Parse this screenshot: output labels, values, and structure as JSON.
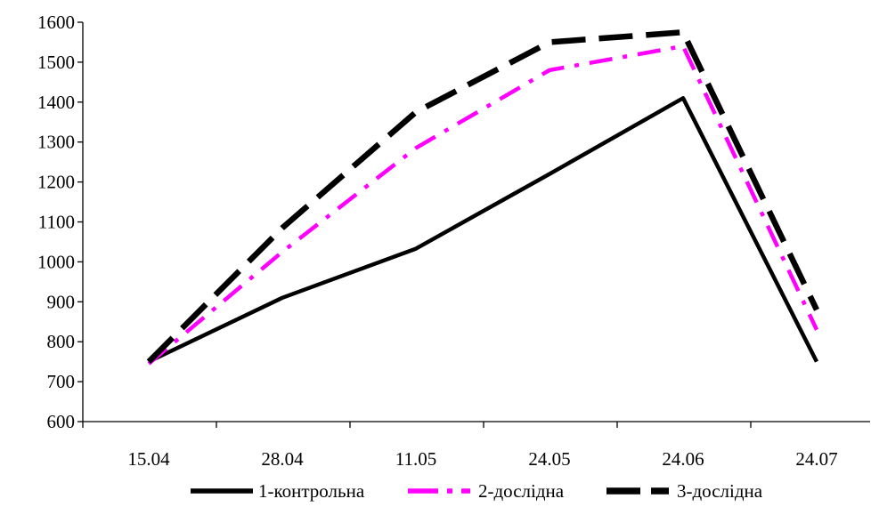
{
  "chart_data": {
    "type": "line",
    "title": "",
    "xlabel": "",
    "ylabel": "",
    "categories": [
      "15.04",
      "28.04",
      "11.05",
      "24.05",
      "24.06",
      "24.07"
    ],
    "ylim": [
      600,
      1600
    ],
    "yticks": [
      "600",
      "700",
      "800",
      "900",
      "1000",
      "1100",
      "1200",
      "1300",
      "1400",
      "1500",
      "1600"
    ],
    "grid": false,
    "legend_position": "bottom",
    "series": [
      {
        "name": "1-контрольна",
        "values": [
          750,
          910,
          1033,
          1220,
          1410,
          750
        ],
        "color": "#000000",
        "dash": "solid"
      },
      {
        "name": "2-дослідна",
        "values": [
          745,
          1025,
          1285,
          1480,
          1540,
          830
        ],
        "color": "#ff00ff",
        "dash": "dash-dot"
      },
      {
        "name": "3-дослідна",
        "values": [
          750,
          1085,
          1375,
          1550,
          1575,
          880
        ],
        "color": "#000000",
        "dash": "dashed"
      }
    ]
  }
}
